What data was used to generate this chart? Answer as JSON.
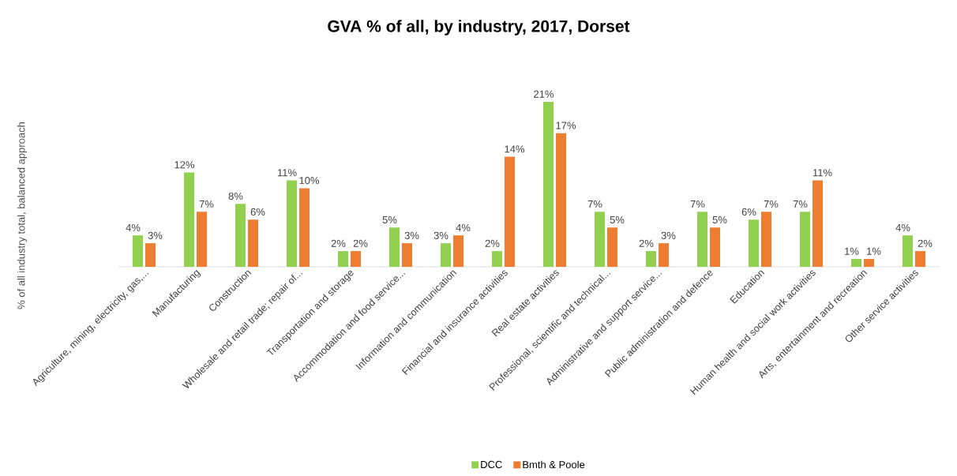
{
  "chart_data": {
    "type": "bar",
    "title": "GVA % of all, by industry, 2017, Dorset",
    "ylabel": "% of all industry total, balanced approach",
    "categories": [
      "Agriculture, mining, electricity, gas,...",
      "Manufacturing",
      "Construction",
      "Wholesale and retail trade; repair of...",
      "Transportation and storage",
      "Accommodation and food service...",
      "Information and communication",
      "Financial and insurance activities",
      "Real estate activities",
      "Professional, scientific and technical...",
      "Administrative and support service...",
      "Public administration and defence",
      "Education",
      "Human health and social work activities",
      "Arts, entertainment and recreation",
      "Other service activities"
    ],
    "series": [
      {
        "name": "DCC",
        "color": "#92d050",
        "values": [
          4,
          12,
          8,
          11,
          2,
          5,
          3,
          2,
          21,
          7,
          2,
          7,
          6,
          7,
          1,
          4
        ],
        "value_labels": [
          "4%",
          "12%",
          "8%",
          "11%",
          "2%",
          "5%",
          "3%",
          "2%",
          "21%",
          "7%",
          "2%",
          "7%",
          "6%",
          "7%",
          "1%",
          "4%"
        ]
      },
      {
        "name": "Bmth & Poole",
        "color": "#ed7d31",
        "values": [
          3,
          7,
          6,
          10,
          2,
          3,
          4,
          14,
          17,
          5,
          3,
          5,
          7,
          11,
          1,
          2
        ],
        "value_labels": [
          "3%",
          "7%",
          "6%",
          "10%",
          "2%",
          "3%",
          "4%",
          "14%",
          "17%",
          "5%",
          "3%",
          "5%",
          "7%",
          "11%",
          "1%",
          "2%"
        ]
      }
    ],
    "legend": "bottom"
  }
}
